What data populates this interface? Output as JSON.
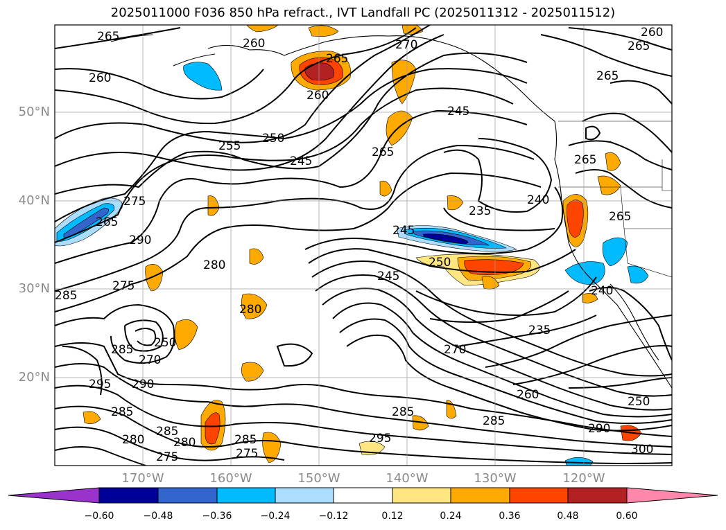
{
  "title": "2025011000 F036 850 hPa refract., IVT Landfall PC (2025011312 - 2025011512)",
  "latitude_labels": [
    "50°N",
    "40°N",
    "30°N",
    "20°N"
  ],
  "longitude_labels": [
    "170°W",
    "160°W",
    "150°W",
    "140°W",
    "130°W",
    "120°W"
  ],
  "colorbar": {
    "tick_labels": [
      "−0.60",
      "−0.48",
      "−0.36",
      "−0.24",
      "−0.12",
      "0.12",
      "0.24",
      "0.36",
      "0.48",
      "0.60"
    ],
    "colors": [
      "#9933cc",
      "#000099",
      "#3366cc",
      "#00bbff",
      "#aaddff",
      "#ffffff",
      "#ffe680",
      "#ffaa00",
      "#ff4400",
      "#b22222",
      "#ff88aa"
    ]
  },
  "contour_labels": [
    "265",
    "260",
    "265",
    "270",
    "260",
    "265",
    "265",
    "260",
    "260",
    "250",
    "255",
    "245",
    "245",
    "275",
    "265",
    "265",
    "240",
    "235",
    "265",
    "290",
    "280",
    "265",
    "250",
    "275",
    "245",
    "285",
    "245",
    "280",
    "240",
    "235",
    "270",
    "250",
    "285",
    "295",
    "290",
    "270",
    "260",
    "285",
    "285",
    "280",
    "285",
    "280",
    "275",
    "285",
    "275",
    "295",
    "285",
    "290",
    "300",
    "250"
  ]
}
